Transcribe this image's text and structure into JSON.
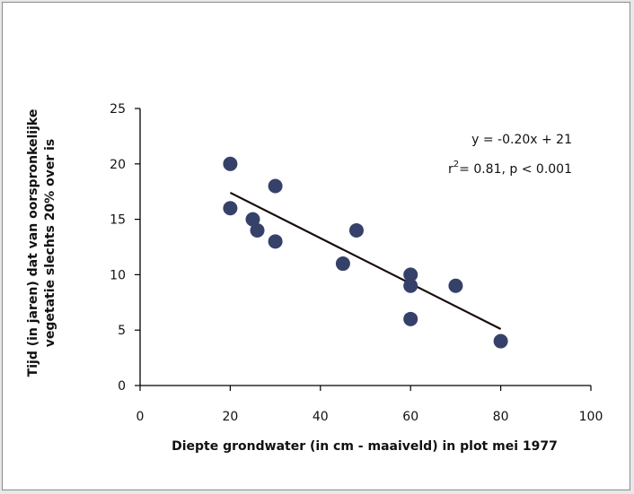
{
  "chart_data": {
    "type": "scatter",
    "title": "",
    "xlabel": "Diepte grondwater (in cm - maaiveld) in plot mei 1977",
    "ylabel_lines": [
      "Tijd (in jaren) dat van oorspronkelijke",
      "vegetatie slechts 20% over is"
    ],
    "xlim": [
      0,
      100
    ],
    "ylim": [
      0,
      25
    ],
    "xticks": [
      0,
      20,
      40,
      60,
      80,
      100
    ],
    "yticks": [
      0,
      5,
      10,
      15,
      20,
      25
    ],
    "grid": false,
    "points": [
      {
        "x": 20,
        "y": 20
      },
      {
        "x": 20,
        "y": 16
      },
      {
        "x": 25,
        "y": 15
      },
      {
        "x": 26,
        "y": 14
      },
      {
        "x": 30,
        "y": 18
      },
      {
        "x": 30,
        "y": 13
      },
      {
        "x": 45,
        "y": 11
      },
      {
        "x": 48,
        "y": 14
      },
      {
        "x": 60,
        "y": 10
      },
      {
        "x": 60,
        "y": 9
      },
      {
        "x": 60,
        "y": 6
      },
      {
        "x": 70,
        "y": 9
      },
      {
        "x": 80,
        "y": 4
      }
    ],
    "trendline": {
      "x": [
        20,
        80
      ],
      "y": [
        17.4,
        5.1
      ]
    },
    "equation": "y = -0.20x + 21",
    "stats": {
      "r_prefix": "r",
      "r_sup": "2",
      "rest": "= 0.81, p < 0.001"
    },
    "colors": {
      "marker": "#36416a",
      "line": "#1a0a0a",
      "axis": "#000000"
    }
  }
}
